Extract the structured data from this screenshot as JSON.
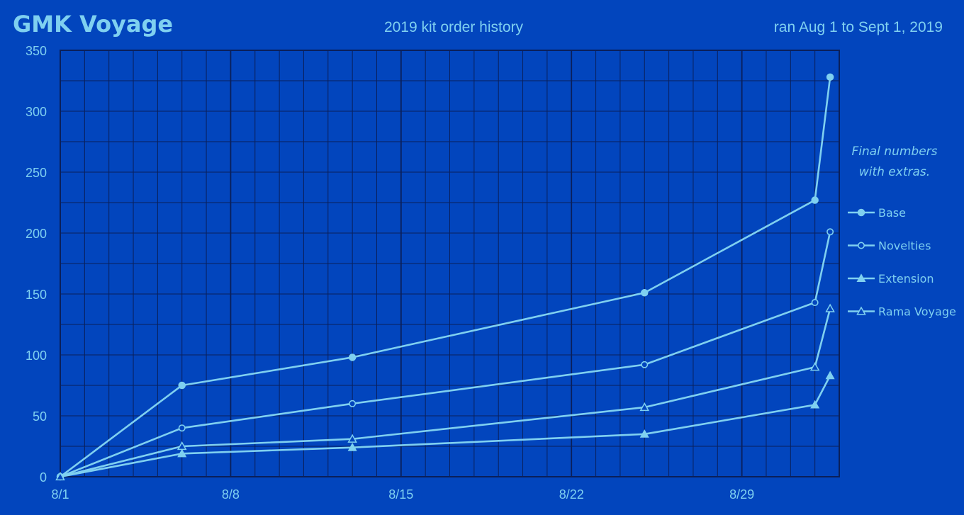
{
  "colors": {
    "background": "#0245bd",
    "grid": "#0a1f5a",
    "series": "#7fd0f0"
  },
  "chart_data": {
    "type": "line",
    "title": "GMK Voyage",
    "subtitle": "2019 kit order history",
    "date_range": "ran Aug 1 to Sept 1, 2019",
    "note": [
      "Final numbers",
      "with extras."
    ],
    "xlabel": "",
    "ylabel": "",
    "x_axis": {
      "type": "date",
      "range": [
        "2019-08-01",
        "2019-09-02"
      ],
      "ticks": [
        {
          "date": "2019-08-01",
          "label": "8/1"
        },
        {
          "date": "2019-08-08",
          "label": "8/8"
        },
        {
          "date": "2019-08-15",
          "label": "8/15"
        },
        {
          "date": "2019-08-22",
          "label": "8/22"
        },
        {
          "date": "2019-08-29",
          "label": "8/29"
        }
      ]
    },
    "ylim": [
      0,
      350
    ],
    "yticks": [
      0,
      50,
      100,
      150,
      200,
      250,
      300,
      350
    ],
    "grid": true,
    "legend_position": "right",
    "series": [
      {
        "name": "Base",
        "marker": "circle-filled",
        "points": [
          {
            "x": "2019-08-01",
            "y": 0
          },
          {
            "x": "2019-08-06",
            "y": 75
          },
          {
            "x": "2019-08-13",
            "y": 98
          },
          {
            "x": "2019-08-25",
            "y": 151
          },
          {
            "x": "2019-09-01",
            "y": 227
          },
          {
            "x": "2019-09-01 15:00",
            "y": 328
          }
        ]
      },
      {
        "name": "Novelties",
        "marker": "circle-open",
        "points": [
          {
            "x": "2019-08-01",
            "y": 0
          },
          {
            "x": "2019-08-06",
            "y": 40
          },
          {
            "x": "2019-08-13",
            "y": 60
          },
          {
            "x": "2019-08-25",
            "y": 92
          },
          {
            "x": "2019-09-01",
            "y": 143
          },
          {
            "x": "2019-09-01 15:00",
            "y": 201
          }
        ]
      },
      {
        "name": "Extension",
        "marker": "triangle-filled",
        "points": [
          {
            "x": "2019-08-01",
            "y": 0
          },
          {
            "x": "2019-08-06",
            "y": 19
          },
          {
            "x": "2019-08-13",
            "y": 24
          },
          {
            "x": "2019-08-25",
            "y": 35
          },
          {
            "x": "2019-09-01",
            "y": 59
          },
          {
            "x": "2019-09-01 15:00",
            "y": 83
          }
        ]
      },
      {
        "name": "Rama Voyage",
        "marker": "triangle-open",
        "points": [
          {
            "x": "2019-08-01",
            "y": 0
          },
          {
            "x": "2019-08-06",
            "y": 25
          },
          {
            "x": "2019-08-13",
            "y": 31
          },
          {
            "x": "2019-08-25",
            "y": 57
          },
          {
            "x": "2019-09-01",
            "y": 90
          },
          {
            "x": "2019-09-01 15:00",
            "y": 138
          }
        ]
      }
    ]
  }
}
